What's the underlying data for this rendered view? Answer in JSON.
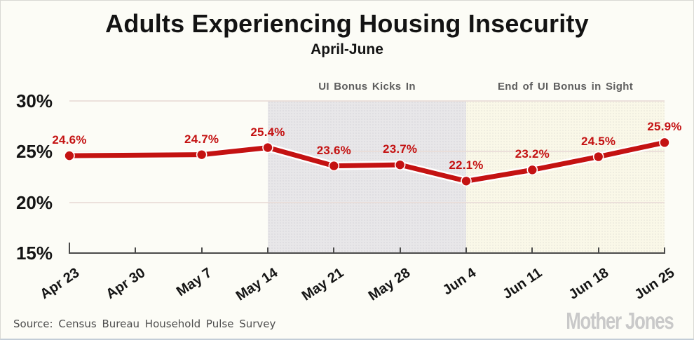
{
  "header": {
    "title": "Adults Experiencing Housing Insecurity",
    "subtitle": "April-June"
  },
  "chart_data": {
    "type": "line",
    "title": "Adults Experiencing Housing Insecurity",
    "subtitle": "April-June",
    "categories": [
      "Apr 23",
      "Apr 30",
      "May 7",
      "May 14",
      "May 21",
      "May 28",
      "Jun 4",
      "Jun 11",
      "Jun 18",
      "Jun 25"
    ],
    "series": [
      {
        "name": "Adults experiencing housing insecurity (%)",
        "values": [
          24.6,
          null,
          24.7,
          25.4,
          23.6,
          23.7,
          22.1,
          23.2,
          24.5,
          25.9
        ]
      }
    ],
    "point_labels": [
      "24.6%",
      "",
      "24.7%",
      "25.4%",
      "23.6%",
      "23.7%",
      "22.1%",
      "23.2%",
      "24.5%",
      "25.9%"
    ],
    "yticks": [
      {
        "value": 30,
        "label": "30%"
      },
      {
        "value": 25,
        "label": "25%"
      },
      {
        "value": 20,
        "label": "20%"
      },
      {
        "value": 15,
        "label": "15%"
      }
    ],
    "ylim": [
      15,
      30
    ],
    "grid": "horizontal",
    "legend": "none",
    "line_color": "#c41212",
    "label_color": "#c41212",
    "annotations": [
      {
        "label": "UI Bonus Kicks In",
        "from": "May 14",
        "to": "Jun 4",
        "band_color": "#e8e7e9",
        "text_color": "#5e5e5e"
      },
      {
        "label": "End of UI Bonus in Sight",
        "from": "Jun 4",
        "to": "Jun 25",
        "band_color": "#faf8e8",
        "text_color": "#5e5e5e"
      }
    ]
  },
  "footer": {
    "source": "Source: Census Bureau Household Pulse Survey",
    "logo": "Mother Jones"
  }
}
